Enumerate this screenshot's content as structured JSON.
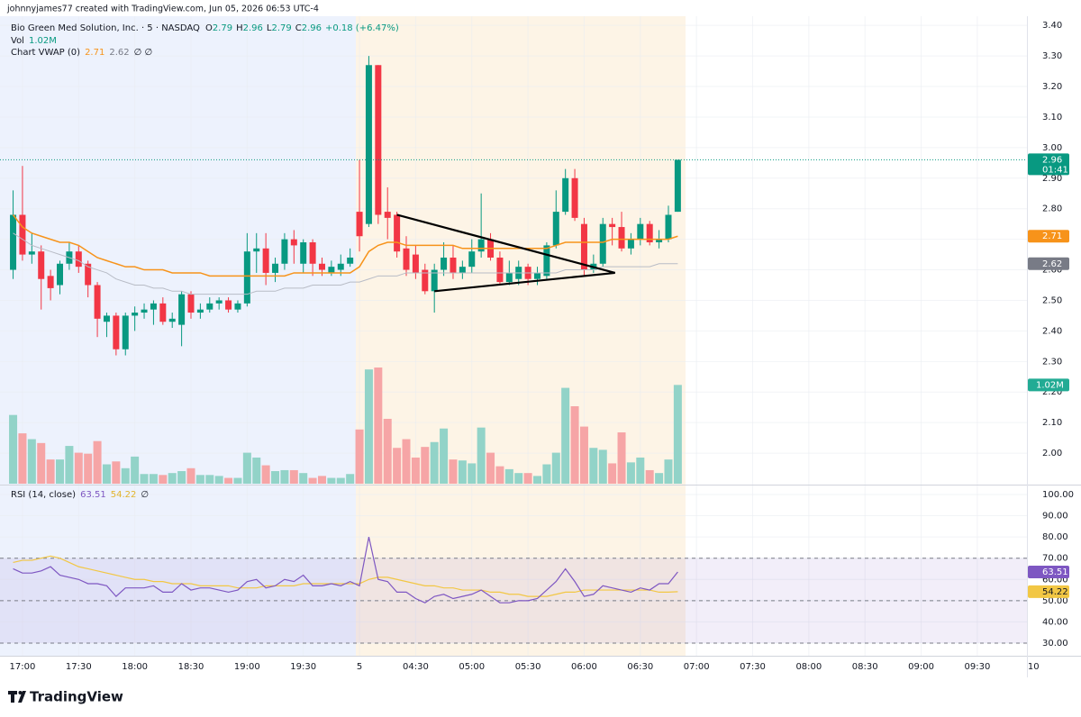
{
  "header": {
    "credit": "johnnyjames77 created with TradingView.com, Jun 05, 2026 06:53 UTC-4",
    "symbol": "Bio Green Med Solution, Inc. · 5 · NASDAQ",
    "ohlc": [
      {
        "k": "O",
        "v": "2.79"
      },
      {
        "k": "H",
        "v": "2.96"
      },
      {
        "k": "L",
        "v": "2.79"
      },
      {
        "k": "C",
        "v": "2.96"
      }
    ],
    "change": "+0.18 (+6.47%)",
    "vol": "Vol",
    "vol_value": "1.02M",
    "vwap": "Chart VWAP (0)",
    "vwap_values": [
      "2.71",
      "2.62",
      "∅ ∅"
    ],
    "rsi": "RSI (14, close)",
    "rsi_values": [
      "63.51",
      "54.22",
      "∅"
    ]
  },
  "footer": {
    "brand": "TradingView"
  },
  "chart_data": [
    {
      "type": "candlestick",
      "up_color": "#089981",
      "down_color": "#f23645",
      "open": [
        2.6,
        2.78,
        2.65,
        2.66,
        2.58,
        2.55,
        2.62,
        2.66,
        2.62,
        2.55,
        2.43,
        2.45,
        2.34,
        2.45,
        2.46,
        2.47,
        2.49,
        2.43,
        2.42,
        2.52,
        2.46,
        2.47,
        2.49,
        2.5,
        2.47,
        2.49,
        2.66,
        2.67,
        2.59,
        2.62,
        2.7,
        2.62,
        2.69,
        2.62,
        2.59,
        2.6,
        2.62,
        2.79,
        2.75,
        3.27,
        2.79,
        2.78,
        2.67,
        2.65,
        2.6,
        2.53,
        2.6,
        2.64,
        2.59,
        2.61,
        2.66,
        2.7,
        2.64,
        2.56,
        2.57,
        2.61,
        2.57,
        2.58,
        2.68,
        2.79,
        2.9,
        2.75,
        2.6,
        2.62,
        2.75,
        2.74,
        2.67,
        2.7,
        2.75,
        2.69,
        2.7,
        2.79
      ],
      "high": [
        2.86,
        2.94,
        2.72,
        2.68,
        2.6,
        2.63,
        2.69,
        2.68,
        2.63,
        2.56,
        2.46,
        2.46,
        2.46,
        2.48,
        2.49,
        2.5,
        2.51,
        2.46,
        2.53,
        2.53,
        2.49,
        2.51,
        2.51,
        2.51,
        2.5,
        2.72,
        2.72,
        2.72,
        2.64,
        2.72,
        2.73,
        2.7,
        2.7,
        2.64,
        2.63,
        2.65,
        2.67,
        2.96,
        3.3,
        3.27,
        2.87,
        2.79,
        2.71,
        2.68,
        2.62,
        2.62,
        2.69,
        2.68,
        2.63,
        2.7,
        2.85,
        2.72,
        2.66,
        2.63,
        2.63,
        2.62,
        2.61,
        2.69,
        2.86,
        2.93,
        2.93,
        2.77,
        2.65,
        2.77,
        2.77,
        2.79,
        2.72,
        2.77,
        2.76,
        2.73,
        2.81,
        2.96
      ],
      "low": [
        2.57,
        2.63,
        2.62,
        2.47,
        2.5,
        2.52,
        2.6,
        2.59,
        2.51,
        2.38,
        2.38,
        2.32,
        2.32,
        2.4,
        2.44,
        2.42,
        2.42,
        2.41,
        2.35,
        2.44,
        2.44,
        2.46,
        2.47,
        2.46,
        2.46,
        2.48,
        2.59,
        2.55,
        2.56,
        2.6,
        2.62,
        2.59,
        2.58,
        2.58,
        2.58,
        2.58,
        2.61,
        2.66,
        2.74,
        2.75,
        2.7,
        2.64,
        2.58,
        2.57,
        2.52,
        2.46,
        2.58,
        2.57,
        2.57,
        2.59,
        2.64,
        2.63,
        2.55,
        2.55,
        2.55,
        2.55,
        2.55,
        2.57,
        2.67,
        2.78,
        2.76,
        2.58,
        2.59,
        2.61,
        2.68,
        2.66,
        2.65,
        2.68,
        2.68,
        2.67,
        2.69,
        2.79
      ],
      "close": [
        2.78,
        2.65,
        2.66,
        2.57,
        2.54,
        2.62,
        2.66,
        2.61,
        2.55,
        2.44,
        2.45,
        2.34,
        2.45,
        2.46,
        2.47,
        2.49,
        2.43,
        2.44,
        2.52,
        2.46,
        2.47,
        2.49,
        2.5,
        2.47,
        2.49,
        2.66,
        2.67,
        2.59,
        2.62,
        2.7,
        2.68,
        2.69,
        2.62,
        2.6,
        2.61,
        2.62,
        2.64,
        2.71,
        3.27,
        2.78,
        2.77,
        2.66,
        2.6,
        2.59,
        2.53,
        2.6,
        2.64,
        2.59,
        2.61,
        2.66,
        2.7,
        2.64,
        2.56,
        2.59,
        2.61,
        2.57,
        2.59,
        2.68,
        2.79,
        2.9,
        2.77,
        2.6,
        2.62,
        2.75,
        2.74,
        2.67,
        2.7,
        2.75,
        2.69,
        2.7,
        2.78,
        2.96
      ],
      "last_label": "2.96",
      "countdown": "01:41",
      "series": [
        {
          "color": "#f7931a",
          "last_label": "2.71",
          "values": [
            2.78,
            2.74,
            2.72,
            2.71,
            2.7,
            2.69,
            2.69,
            2.68,
            2.66,
            2.64,
            2.63,
            2.62,
            2.61,
            2.61,
            2.6,
            2.6,
            2.6,
            2.59,
            2.59,
            2.59,
            2.59,
            2.58,
            2.58,
            2.58,
            2.58,
            2.58,
            2.58,
            2.58,
            2.58,
            2.58,
            2.59,
            2.59,
            2.59,
            2.59,
            2.59,
            2.59,
            2.59,
            2.61,
            2.66,
            2.68,
            2.69,
            2.69,
            2.68,
            2.68,
            2.68,
            2.68,
            2.68,
            2.68,
            2.67,
            2.67,
            2.67,
            2.67,
            2.67,
            2.67,
            2.67,
            2.67,
            2.67,
            2.67,
            2.68,
            2.69,
            2.69,
            2.69,
            2.69,
            2.69,
            2.7,
            2.7,
            2.7,
            2.7,
            2.7,
            2.7,
            2.7,
            2.71
          ]
        },
        {
          "color": "#b8bcc6",
          "last_label": "2.62",
          "values": [
            2.72,
            2.7,
            2.68,
            2.67,
            2.66,
            2.65,
            2.64,
            2.63,
            2.61,
            2.6,
            2.59,
            2.57,
            2.56,
            2.55,
            2.55,
            2.54,
            2.54,
            2.53,
            2.53,
            2.52,
            2.52,
            2.52,
            2.52,
            2.52,
            2.52,
            2.52,
            2.53,
            2.53,
            2.53,
            2.54,
            2.54,
            2.54,
            2.55,
            2.55,
            2.55,
            2.55,
            2.56,
            2.56,
            2.57,
            2.58,
            2.58,
            2.58,
            2.59,
            2.59,
            2.59,
            2.59,
            2.59,
            2.59,
            2.59,
            2.59,
            2.59,
            2.59,
            2.59,
            2.59,
            2.59,
            2.59,
            2.59,
            2.59,
            2.59,
            2.6,
            2.6,
            2.6,
            2.6,
            2.61,
            2.61,
            2.61,
            2.61,
            2.61,
            2.61,
            2.62,
            2.62,
            2.62
          ]
        }
      ],
      "trendlines": [
        [
          [
            41,
            2.78
          ],
          [
            64.3,
            2.59
          ]
        ],
        [
          [
            45,
            2.53
          ],
          [
            64.3,
            2.59
          ]
        ]
      ],
      "ylim": [
        1.9,
        3.43
      ],
      "yticks": [
        {
          "value": 3.4,
          "label": "3.40"
        },
        {
          "value": 3.3,
          "label": "3.30"
        },
        {
          "value": 3.2,
          "label": "3.20"
        },
        {
          "value": 3.1,
          "label": "3.10"
        },
        {
          "value": 3.0,
          "label": "3.00"
        },
        {
          "value": 2.9,
          "label": "2.90"
        },
        {
          "value": 2.8,
          "label": "2.80"
        },
        {
          "value": 2.7,
          "label": "2.70"
        },
        {
          "value": 2.6,
          "label": "2.60"
        },
        {
          "value": 2.5,
          "label": "2.50"
        },
        {
          "value": 2.4,
          "label": "2.40"
        },
        {
          "value": 2.3,
          "label": "2.30"
        },
        {
          "value": 2.2,
          "label": "2.20"
        },
        {
          "value": 2.1,
          "label": "2.10"
        },
        {
          "value": 2.0,
          "label": "2.00"
        }
      ],
      "xlim": [
        -1.4,
        108.3
      ],
      "xticks": [
        {
          "value": 1,
          "label": "17:00"
        },
        {
          "value": 7,
          "label": "17:30"
        },
        {
          "value": 13,
          "label": "18:00"
        },
        {
          "value": 19,
          "label": "18:30"
        },
        {
          "value": 25,
          "label": "19:00"
        },
        {
          "value": 31,
          "label": "19:30"
        },
        {
          "value": 37,
          "label": "5"
        },
        {
          "value": 43,
          "label": "04:30"
        },
        {
          "value": 49,
          "label": "05:00"
        },
        {
          "value": 55,
          "label": "05:30"
        },
        {
          "value": 61,
          "label": "06:00"
        },
        {
          "value": 67,
          "label": "06:30"
        },
        {
          "value": 73,
          "label": "07:00"
        },
        {
          "value": 79,
          "label": "07:30"
        },
        {
          "value": 85,
          "label": "08:00"
        },
        {
          "value": 91,
          "label": "08:30"
        },
        {
          "value": 97,
          "label": "09:00"
        },
        {
          "value": 103,
          "label": "09:30"
        },
        {
          "value": 109,
          "label": "10"
        }
      ]
    },
    {
      "type": "bar",
      "up_color": "#92d3c8",
      "down_color": "#f6a5a6",
      "last_label": "1.02M",
      "values": [
        0.71,
        0.52,
        0.46,
        0.42,
        0.25,
        0.25,
        0.39,
        0.32,
        0.31,
        0.44,
        0.2,
        0.23,
        0.16,
        0.28,
        0.1,
        0.1,
        0.09,
        0.11,
        0.13,
        0.16,
        0.09,
        0.09,
        0.08,
        0.06,
        0.06,
        0.32,
        0.27,
        0.19,
        0.13,
        0.14,
        0.14,
        0.11,
        0.06,
        0.08,
        0.06,
        0.06,
        0.1,
        0.56,
        1.18,
        1.2,
        0.67,
        0.37,
        0.46,
        0.27,
        0.38,
        0.43,
        0.57,
        0.25,
        0.24,
        0.21,
        0.58,
        0.32,
        0.18,
        0.15,
        0.11,
        0.11,
        0.08,
        0.2,
        0.32,
        0.99,
        0.8,
        0.59,
        0.37,
        0.35,
        0.21,
        0.53,
        0.22,
        0.27,
        0.14,
        0.11,
        0.25,
        1.02
      ]
    },
    {
      "type": "line",
      "band": [
        30,
        70
      ],
      "levels": [
        70,
        50,
        30
      ],
      "band_color": "#7e57c2",
      "series": [
        {
          "color": "#7e57c2",
          "last_label": "63.51",
          "values": [
            65,
            63,
            63,
            64,
            66,
            62,
            61,
            60,
            58,
            58,
            57,
            52,
            56,
            56,
            56,
            57,
            54,
            54,
            58,
            55,
            56,
            56,
            55,
            54,
            55,
            59,
            60,
            56,
            57,
            60,
            59,
            62,
            57,
            57,
            58,
            57,
            59,
            57,
            80,
            60,
            59,
            54,
            54,
            51,
            49,
            52,
            53,
            51,
            52,
            53,
            55,
            52,
            49,
            49,
            50,
            50,
            51,
            55,
            59,
            65,
            59,
            52,
            53,
            57,
            56,
            55,
            54,
            56,
            55,
            58,
            58,
            63.51
          ]
        },
        {
          "color": "#f2c744",
          "last_label": "54.22",
          "values": [
            68,
            69,
            69,
            70,
            71,
            70,
            68,
            66,
            65,
            64,
            63,
            62,
            61,
            60,
            60,
            59,
            59,
            58,
            58,
            58,
            57,
            57,
            57,
            57,
            56,
            56,
            56,
            57,
            57,
            57,
            57,
            58,
            58,
            58,
            58,
            58,
            58,
            58,
            60,
            61,
            61,
            60,
            59,
            58,
            57,
            57,
            56,
            56,
            55,
            55,
            55,
            54,
            54,
            53,
            53,
            52,
            52,
            52,
            53,
            54,
            54,
            55,
            55,
            55,
            55,
            55,
            55,
            55,
            55,
            54,
            54,
            54.22
          ]
        }
      ],
      "ylim": [
        24.06,
        103.8
      ],
      "yticks": [
        {
          "value": 100,
          "label": "100.00"
        },
        {
          "value": 90,
          "label": "90.00"
        },
        {
          "value": 80,
          "label": "80.00"
        },
        {
          "value": 70,
          "label": "70.00"
        },
        {
          "value": 60,
          "label": "60.00"
        },
        {
          "value": 50,
          "label": "50.00"
        },
        {
          "value": 40,
          "label": "40.00"
        },
        {
          "value": 30,
          "label": "30.00"
        }
      ]
    }
  ]
}
